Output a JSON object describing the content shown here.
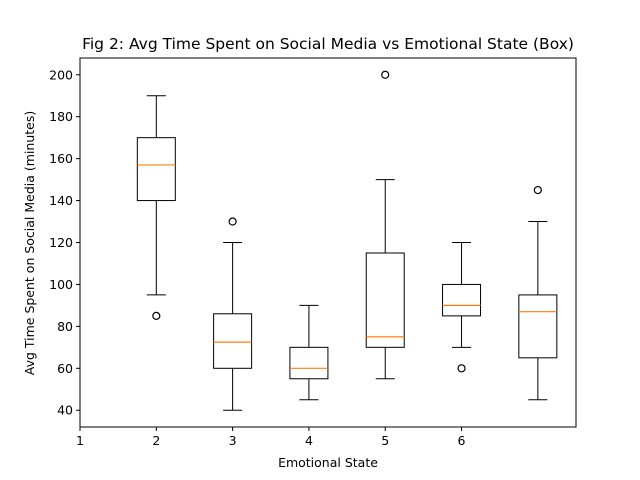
{
  "chart_data": {
    "type": "box",
    "title": "Fig 2: Avg Time Spent on Social Media vs Emotional State (Box)",
    "xlabel": "Emotional State",
    "ylabel": "Avg Time Spent on Social Media (minutes)",
    "x_tick_labels": [
      "1",
      "2",
      "3",
      "4",
      "5",
      "6"
    ],
    "y_ticks": [
      40,
      60,
      80,
      100,
      120,
      140,
      160,
      180,
      200
    ],
    "ylim": [
      32,
      208
    ],
    "xlim": [
      1,
      7.5
    ],
    "grid": false,
    "colors": {
      "box": "#000000",
      "median": "#ff7f0e",
      "flier": "#000000"
    },
    "boxes": [
      {
        "position": 2,
        "whisker_low": 95,
        "q1": 140,
        "median": 157,
        "q3": 170,
        "whisker_high": 190,
        "outliers": [
          85
        ]
      },
      {
        "position": 3,
        "whisker_low": 40,
        "q1": 60,
        "median": 72.5,
        "q3": 86,
        "whisker_high": 120,
        "outliers": [
          130
        ]
      },
      {
        "position": 4,
        "whisker_low": 45,
        "q1": 55,
        "median": 60,
        "q3": 70,
        "whisker_high": 90,
        "outliers": []
      },
      {
        "position": 5,
        "whisker_low": 55,
        "q1": 70,
        "median": 75,
        "q3": 115,
        "whisker_high": 150,
        "outliers": [
          200
        ]
      },
      {
        "position": 6,
        "whisker_low": 70,
        "q1": 85,
        "median": 90,
        "q3": 100,
        "whisker_high": 120,
        "outliers": [
          60
        ]
      },
      {
        "position": 7,
        "whisker_low": 45,
        "q1": 65,
        "median": 87,
        "q3": 95,
        "whisker_high": 130,
        "outliers": [
          145
        ]
      }
    ]
  }
}
